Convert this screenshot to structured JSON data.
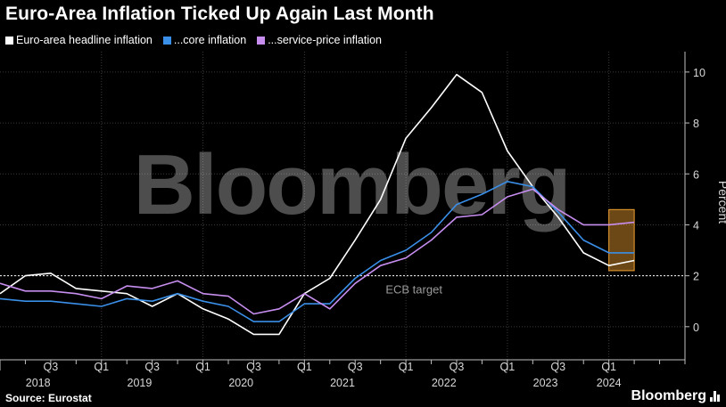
{
  "header": {
    "title": "Euro-Area Inflation Ticked Up Again Last Month"
  },
  "footer": {
    "source": "Source: Eurostat",
    "brand": "Bloomberg"
  },
  "watermark": "Bloomberg",
  "chart_data": {
    "type": "line",
    "ylabel": "Percent",
    "ylim": [
      -1.3,
      10.8
    ],
    "yticks": [
      0,
      2,
      4,
      6,
      8,
      10
    ],
    "xlim": [
      2018.0,
      2024.75
    ],
    "grid": true,
    "legend_position": "top-left",
    "x_tick_labels": [
      {
        "x": 2018.5,
        "label": "Q3"
      },
      {
        "x": 2019.0,
        "label": "Q1"
      },
      {
        "x": 2019.5,
        "label": "Q3"
      },
      {
        "x": 2020.0,
        "label": "Q1"
      },
      {
        "x": 2020.5,
        "label": "Q3"
      },
      {
        "x": 2021.0,
        "label": "Q1"
      },
      {
        "x": 2021.5,
        "label": "Q3"
      },
      {
        "x": 2022.0,
        "label": "Q1"
      },
      {
        "x": 2022.5,
        "label": "Q3"
      },
      {
        "x": 2023.0,
        "label": "Q1"
      },
      {
        "x": 2023.5,
        "label": "Q3"
      },
      {
        "x": 2024.0,
        "label": "Q1"
      }
    ],
    "year_labels": [
      {
        "x": 2018.375,
        "label": "2018"
      },
      {
        "x": 2019.375,
        "label": "2019"
      },
      {
        "x": 2020.375,
        "label": "2020"
      },
      {
        "x": 2021.375,
        "label": "2021"
      },
      {
        "x": 2022.375,
        "label": "2022"
      },
      {
        "x": 2023.375,
        "label": "2023"
      },
      {
        "x": 2024.0,
        "label": "2024"
      }
    ],
    "reference_line": {
      "y": 2,
      "label": "ECB target",
      "label_x": 2021.8
    },
    "highlight_box": {
      "x0": 2024.0,
      "x1": 2024.25,
      "y0": 2.2,
      "y1": 4.6,
      "color": "#f0a030"
    },
    "series": [
      {
        "name": "Euro-area headline inflation",
        "color": "#ffffff",
        "x": [
          2018.0,
          2018.25,
          2018.5,
          2018.75,
          2019.0,
          2019.25,
          2019.5,
          2019.75,
          2020.0,
          2020.25,
          2020.5,
          2020.75,
          2021.0,
          2021.25,
          2021.5,
          2021.75,
          2022.0,
          2022.25,
          2022.5,
          2022.75,
          2023.0,
          2023.25,
          2023.5,
          2023.75,
          2024.0,
          2024.25
        ],
        "values": [
          1.3,
          2.0,
          2.1,
          1.5,
          1.4,
          1.3,
          0.8,
          1.3,
          0.7,
          0.3,
          -0.3,
          -0.3,
          1.3,
          1.9,
          3.4,
          5.0,
          7.4,
          8.6,
          9.9,
          9.2,
          6.9,
          5.5,
          4.3,
          2.9,
          2.4,
          2.6
        ]
      },
      {
        "name": "...core inflation",
        "color": "#3a8fe8",
        "x": [
          2018.0,
          2018.25,
          2018.5,
          2018.75,
          2019.0,
          2019.25,
          2019.5,
          2019.75,
          2020.0,
          2020.25,
          2020.5,
          2020.75,
          2021.0,
          2021.25,
          2021.5,
          2021.75,
          2022.0,
          2022.25,
          2022.5,
          2022.75,
          2023.0,
          2023.25,
          2023.5,
          2023.75,
          2024.0,
          2024.25
        ],
        "values": [
          1.1,
          1.0,
          1.0,
          0.9,
          0.8,
          1.1,
          1.0,
          1.3,
          1.0,
          0.8,
          0.2,
          0.2,
          0.9,
          0.9,
          1.9,
          2.6,
          3.0,
          3.7,
          4.8,
          5.2,
          5.7,
          5.5,
          4.5,
          3.4,
          2.9,
          2.9
        ]
      },
      {
        "name": "...service-price inflation",
        "color": "#c78ef0",
        "x": [
          2018.0,
          2018.25,
          2018.5,
          2018.75,
          2019.0,
          2019.25,
          2019.5,
          2019.75,
          2020.0,
          2020.25,
          2020.5,
          2020.75,
          2021.0,
          2021.25,
          2021.5,
          2021.75,
          2022.0,
          2022.25,
          2022.5,
          2022.75,
          2023.0,
          2023.25,
          2023.5,
          2023.75,
          2024.0,
          2024.25
        ],
        "values": [
          1.7,
          1.4,
          1.4,
          1.3,
          1.1,
          1.6,
          1.5,
          1.8,
          1.3,
          1.2,
          0.5,
          0.7,
          1.3,
          0.7,
          1.7,
          2.4,
          2.7,
          3.4,
          4.3,
          4.4,
          5.1,
          5.4,
          4.6,
          4.0,
          4.0,
          4.1
        ]
      }
    ]
  }
}
